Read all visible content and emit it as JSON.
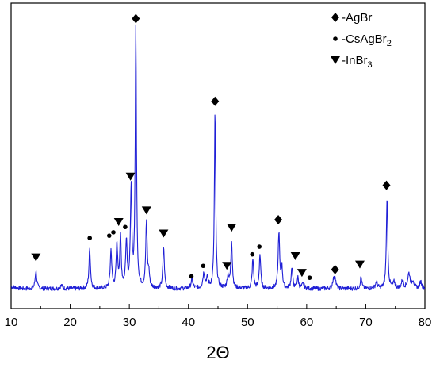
{
  "chart_data": {
    "type": "line",
    "xlabel": "2Θ",
    "xlim": [
      10,
      80
    ],
    "x_ticks": [
      "10",
      "20",
      "30",
      "40",
      "50",
      "60",
      "70",
      "80"
    ],
    "grid": false,
    "line_color": "#1f1fd6",
    "baseline": 1.8,
    "peaks": [
      {
        "x": 14.2,
        "h": 6.8,
        "w": 0.16
      },
      {
        "x": 18.5,
        "h": 1.2,
        "w": 0.2
      },
      {
        "x": 23.3,
        "h": 15.2,
        "w": 0.15
      },
      {
        "x": 26.9,
        "h": 14.4,
        "w": 0.15
      },
      {
        "x": 27.9,
        "h": 16.4,
        "w": 0.15
      },
      {
        "x": 28.5,
        "h": 19.2,
        "w": 0.15
      },
      {
        "x": 29.5,
        "h": 18.0,
        "w": 0.15
      },
      {
        "x": 30.3,
        "h": 37.5,
        "w": 0.14
      },
      {
        "x": 31.1,
        "h": 98.2,
        "w": 0.13
      },
      {
        "x": 32.9,
        "h": 24.7,
        "w": 0.15
      },
      {
        "x": 33.3,
        "h": 5.2,
        "w": 0.14
      },
      {
        "x": 35.8,
        "h": 16.0,
        "w": 0.15
      },
      {
        "x": 40.6,
        "h": 3.3,
        "w": 0.2
      },
      {
        "x": 42.6,
        "h": 5.6,
        "w": 0.2
      },
      {
        "x": 43.2,
        "h": 3.5,
        "w": 0.2
      },
      {
        "x": 44.5,
        "h": 66.8,
        "w": 0.13
      },
      {
        "x": 46.7,
        "h": 4.5,
        "w": 0.18
      },
      {
        "x": 47.3,
        "h": 18.0,
        "w": 0.15
      },
      {
        "x": 50.9,
        "h": 11.0,
        "w": 0.15
      },
      {
        "x": 52.1,
        "h": 12.9,
        "w": 0.15
      },
      {
        "x": 55.3,
        "h": 21.3,
        "w": 0.15
      },
      {
        "x": 55.8,
        "h": 7.8,
        "w": 0.15
      },
      {
        "x": 57.5,
        "h": 8.1,
        "w": 0.15
      },
      {
        "x": 58.5,
        "h": 4.1,
        "w": 0.15
      },
      {
        "x": 59.4,
        "h": 1.9,
        "w": 0.2
      },
      {
        "x": 64.5,
        "h": 2.9,
        "w": 0.18
      },
      {
        "x": 64.8,
        "h": 4.3,
        "w": 0.16
      },
      {
        "x": 69.2,
        "h": 4.4,
        "w": 0.16
      },
      {
        "x": 71.8,
        "h": 2.5,
        "w": 0.2
      },
      {
        "x": 73.6,
        "h": 34.8,
        "w": 0.14
      },
      {
        "x": 74.8,
        "h": 2.3,
        "w": 0.2
      },
      {
        "x": 76.2,
        "h": 3.0,
        "w": 0.2
      },
      {
        "x": 77.3,
        "h": 5.7,
        "w": 0.25
      },
      {
        "x": 78.0,
        "h": 2.8,
        "w": 0.2
      },
      {
        "x": 79.3,
        "h": 2.6,
        "w": 0.2
      }
    ],
    "markers": [
      {
        "phase": "InBr3",
        "x": 14.2,
        "y": 13.7
      },
      {
        "phase": "CsAgBr2",
        "x": 23.3,
        "y": 21.1
      },
      {
        "phase": "CsAgBr2",
        "x": 26.6,
        "y": 22.0
      },
      {
        "phase": "CsAgBr2",
        "x": 27.3,
        "y": 23.3
      },
      {
        "phase": "InBr3",
        "x": 28.2,
        "y": 27.2
      },
      {
        "phase": "CsAgBr2",
        "x": 29.3,
        "y": 25.3
      },
      {
        "phase": "InBr3",
        "x": 30.2,
        "y": 44.5
      },
      {
        "phase": "AgBr",
        "x": 31.1,
        "y": 104.7
      },
      {
        "phase": "InBr3",
        "x": 32.9,
        "y": 31.6
      },
      {
        "phase": "InBr3",
        "x": 35.8,
        "y": 22.8
      },
      {
        "phase": "CsAgBr2",
        "x": 40.5,
        "y": 6.5
      },
      {
        "phase": "CsAgBr2",
        "x": 42.5,
        "y": 10.5
      },
      {
        "phase": "AgBr",
        "x": 44.5,
        "y": 73.2
      },
      {
        "phase": "InBr3",
        "x": 46.5,
        "y": 10.5
      },
      {
        "phase": "InBr3",
        "x": 47.3,
        "y": 25.0
      },
      {
        "phase": "CsAgBr2",
        "x": 50.8,
        "y": 14.9
      },
      {
        "phase": "CsAgBr2",
        "x": 52.0,
        "y": 17.8
      },
      {
        "phase": "AgBr",
        "x": 55.2,
        "y": 28.1
      },
      {
        "phase": "InBr3",
        "x": 58.1,
        "y": 14.2
      },
      {
        "phase": "InBr3",
        "x": 59.2,
        "y": 7.8
      },
      {
        "phase": "CsAgBr2",
        "x": 60.5,
        "y": 6.0
      },
      {
        "phase": "AgBr",
        "x": 64.8,
        "y": 9.1
      },
      {
        "phase": "InBr3",
        "x": 69.0,
        "y": 11.0
      },
      {
        "phase": "AgBr",
        "x": 73.5,
        "y": 41.2
      }
    ],
    "legend": {
      "placement": "top-right",
      "entries": [
        {
          "phase": "AgBr",
          "label": "-AgBr",
          "sub": ""
        },
        {
          "phase": "CsAgBr2",
          "label": "-CsAgBr",
          "sub": "2"
        },
        {
          "phase": "InBr3",
          "label": "-InBr",
          "sub": "3"
        }
      ]
    }
  }
}
